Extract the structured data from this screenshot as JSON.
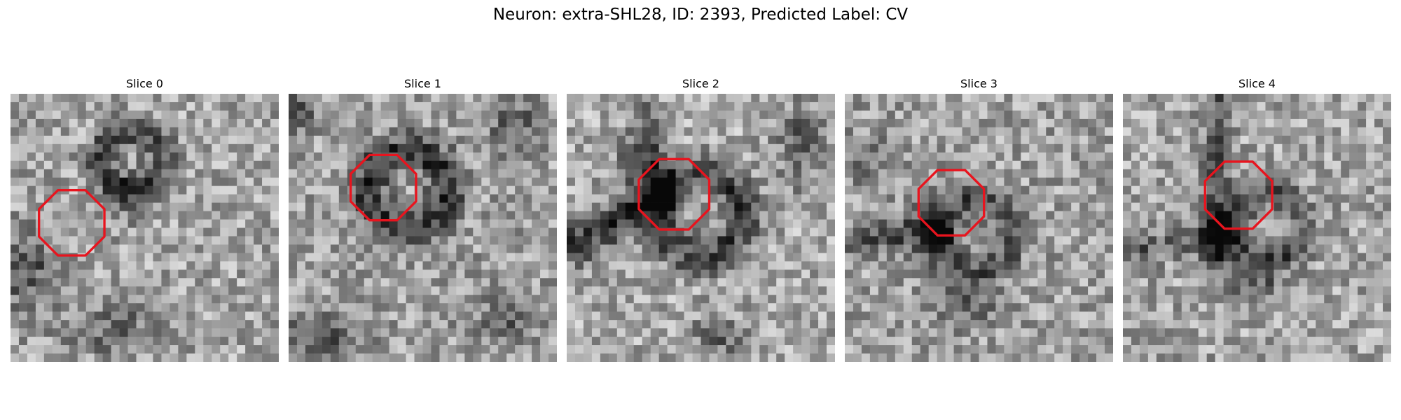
{
  "figure": {
    "title": "Neuron: extra-SHL28, ID: 2393, Predicted Label: CV"
  },
  "panels": [
    {
      "title": "Slice 0"
    },
    {
      "title": "Slice 1"
    },
    {
      "title": "Slice 2"
    },
    {
      "title": "Slice 3"
    },
    {
      "title": "Slice 4"
    }
  ],
  "colors": {
    "outline": "#e8141e"
  },
  "grid": {
    "cols": 32,
    "rows": 32
  }
}
